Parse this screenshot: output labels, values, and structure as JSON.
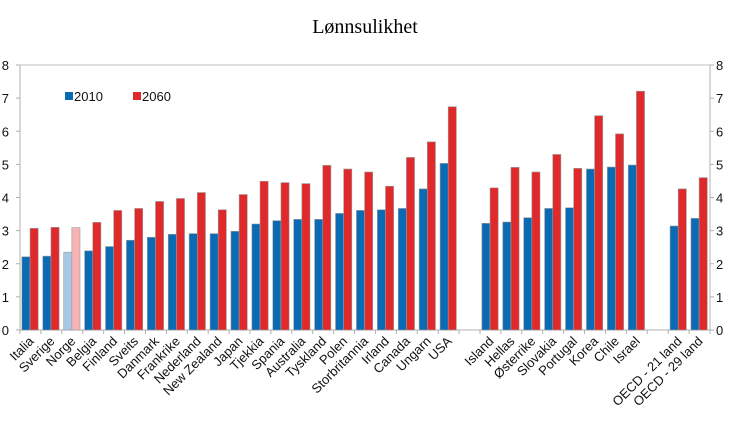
{
  "chart_data": {
    "type": "bar",
    "title": "Lønnsulikhet",
    "xlabel": "",
    "ylabel": "",
    "ylim": [
      0,
      8
    ],
    "yticks": [
      "0",
      "1",
      "2",
      "3",
      "4",
      "5",
      "6",
      "7",
      "8"
    ],
    "grid": false,
    "legend": "top-left",
    "categories": [
      "Italia",
      "Sverige",
      "Norge",
      "Belgia",
      "Finland",
      "Sveits",
      "Danmark",
      "Frankrike",
      "Nederland",
      "New Zealand",
      "Japan",
      "Tjekkia",
      "Spania",
      "Australia",
      "Tyskland",
      "Polen",
      "Storbritannia",
      "Irland",
      "Canada",
      "Ungarn",
      "USA",
      "",
      "Island",
      "Hellas",
      "Østerrike",
      "Slovakia",
      "Portugal",
      "Korea",
      "Chile",
      "Israel",
      "",
      "OECD - 21 land",
      "OECD - 29 land"
    ],
    "highlight_category": "Norge",
    "series": [
      {
        "name": "2010",
        "color": "#0a6ab4",
        "highlight_color": "#a9c8e4",
        "values": [
          2.21,
          2.23,
          2.35,
          2.39,
          2.52,
          2.71,
          2.8,
          2.89,
          2.91,
          2.91,
          2.98,
          3.2,
          3.3,
          3.34,
          3.34,
          3.52,
          3.61,
          3.63,
          3.67,
          4.26,
          5.03,
          null,
          3.22,
          3.26,
          3.39,
          3.67,
          3.69,
          4.86,
          4.92,
          4.98,
          null,
          3.14,
          3.37
        ]
      },
      {
        "name": "2060",
        "color": "#e0292a",
        "highlight_color": "#f7b3b3",
        "values": [
          3.07,
          3.1,
          3.09,
          3.25,
          3.61,
          3.67,
          3.88,
          3.97,
          4.15,
          3.63,
          4.09,
          4.49,
          4.45,
          4.42,
          4.97,
          4.86,
          4.77,
          4.34,
          5.21,
          5.68,
          6.74,
          null,
          4.29,
          4.91,
          4.77,
          5.3,
          4.88,
          6.47,
          5.92,
          7.21,
          null,
          4.26,
          4.6
        ]
      }
    ]
  }
}
